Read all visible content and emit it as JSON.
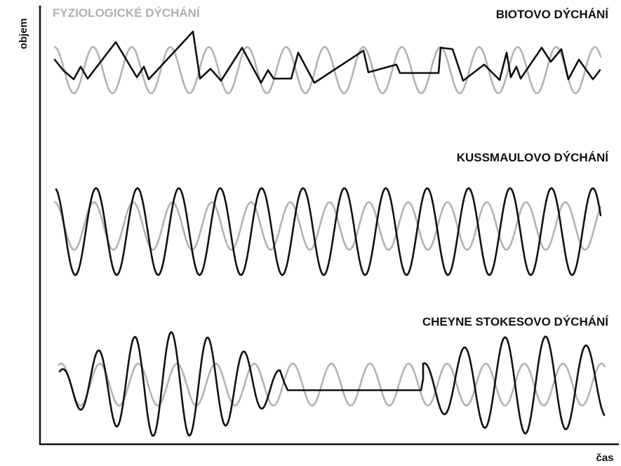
{
  "reference": {
    "title": "FYZIOLOGICKÉ DÝCHÁNÍ"
  },
  "panels": [
    {
      "title": "BIOTOVO DÝCHÁNÍ"
    },
    {
      "title": "KUSSMAULOVO DÝCHÁNÍ"
    },
    {
      "title": "CHEYNE STOKESOVO DÝCHÁNÍ"
    }
  ],
  "axes": {
    "y_label": "objem",
    "x_label": "čas"
  }
}
